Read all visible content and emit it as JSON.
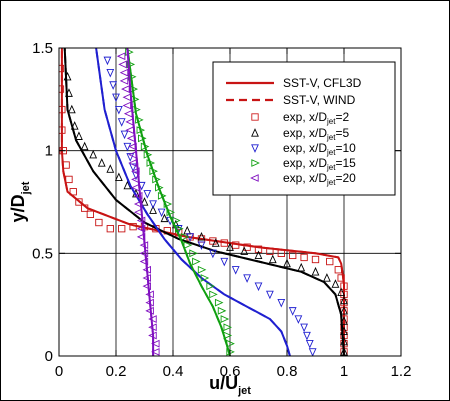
{
  "chart_data": {
    "type": "line",
    "xlabel": {
      "main": "u/U",
      "sub": "jet"
    },
    "ylabel": {
      "main": "y/D",
      "sub": "jet"
    },
    "xlim": [
      0,
      1.2
    ],
    "ylim": [
      0,
      1.5
    ],
    "x_ticks": [
      "0",
      "0.2",
      "0.4",
      "0.6",
      "0.8",
      "1",
      "1.2"
    ],
    "y_ticks": [
      "0",
      "0.5",
      "1",
      "1.5"
    ],
    "grid": true,
    "legend_position": "top-right",
    "legend": [
      {
        "text": "SST-V, CFL3D",
        "kind": "line",
        "color": "#c81414",
        "dash": false
      },
      {
        "text": "SST-V, WIND",
        "kind": "line",
        "color": "#c81414",
        "dash": true
      },
      {
        "text": "exp, x/D",
        "sub": "jet",
        "suffix": "=2",
        "kind": "marker",
        "marker": "square",
        "color": "#d02020"
      },
      {
        "text": "exp, x/D",
        "sub": "jet",
        "suffix": "=5",
        "kind": "marker",
        "marker": "triangle-up",
        "color": "#000000"
      },
      {
        "text": "exp, x/D",
        "sub": "jet",
        "suffix": "=10",
        "kind": "marker",
        "marker": "triangle-down",
        "color": "#2020d0"
      },
      {
        "text": "exp, x/D",
        "sub": "jet",
        "suffix": "=15",
        "kind": "marker",
        "marker": "triangle-right",
        "color": "#10a010"
      },
      {
        "text": "exp, x/D",
        "sub": "jet",
        "suffix": "=20",
        "kind": "marker",
        "marker": "triangle-left",
        "color": "#8010c0"
      }
    ],
    "series": [
      {
        "color": "#c81414",
        "marker": "square",
        "cfd": [
          [
            1.0,
            0
          ],
          [
            1.0,
            0.35
          ],
          [
            0.99,
            0.45
          ],
          [
            0.98,
            0.48
          ],
          [
            0.9,
            0.5
          ],
          [
            0.7,
            0.53
          ],
          [
            0.45,
            0.58
          ],
          [
            0.25,
            0.64
          ],
          [
            0.1,
            0.72
          ],
          [
            0.03,
            0.8
          ],
          [
            0.015,
            0.9
          ],
          [
            0.01,
            1.0
          ],
          [
            0.01,
            1.5
          ]
        ],
        "exp": [
          [
            1.0,
            0.02
          ],
          [
            1.0,
            0.06
          ],
          [
            1.0,
            0.1
          ],
          [
            1.0,
            0.14
          ],
          [
            1.0,
            0.18
          ],
          [
            1.0,
            0.22
          ],
          [
            1.0,
            0.26
          ],
          [
            1.0,
            0.3
          ],
          [
            1.0,
            0.34
          ],
          [
            0.99,
            0.38
          ],
          [
            0.98,
            0.42
          ],
          [
            0.95,
            0.46
          ],
          [
            0.9,
            0.47
          ],
          [
            0.86,
            0.48
          ],
          [
            0.82,
            0.49
          ],
          [
            0.78,
            0.5
          ],
          [
            0.74,
            0.51
          ],
          [
            0.7,
            0.52
          ],
          [
            0.66,
            0.53
          ],
          [
            0.62,
            0.54
          ],
          [
            0.58,
            0.55
          ],
          [
            0.54,
            0.56
          ],
          [
            0.5,
            0.57
          ],
          [
            0.46,
            0.58
          ],
          [
            0.42,
            0.6
          ],
          [
            0.38,
            0.61
          ],
          [
            0.34,
            0.62
          ],
          [
            0.3,
            0.63
          ],
          [
            0.26,
            0.63
          ],
          [
            0.22,
            0.62
          ],
          [
            0.18,
            0.62
          ],
          [
            0.14,
            0.65
          ],
          [
            0.11,
            0.69
          ],
          [
            0.09,
            0.72
          ],
          [
            0.07,
            0.75
          ],
          [
            0.05,
            0.8
          ],
          [
            0.035,
            0.86
          ],
          [
            0.025,
            0.93
          ],
          [
            0.015,
            1.0
          ],
          [
            0.01,
            1.1
          ],
          [
            0.01,
            1.2
          ],
          [
            0.005,
            1.3
          ],
          [
            0.005,
            1.4
          ]
        ]
      },
      {
        "color": "#000000",
        "marker": "triangle-up",
        "cfd": [
          [
            1.0,
            0
          ],
          [
            0.99,
            0.2
          ],
          [
            0.97,
            0.3
          ],
          [
            0.93,
            0.36
          ],
          [
            0.85,
            0.41
          ],
          [
            0.7,
            0.46
          ],
          [
            0.55,
            0.51
          ],
          [
            0.42,
            0.57
          ],
          [
            0.3,
            0.65
          ],
          [
            0.2,
            0.76
          ],
          [
            0.12,
            0.9
          ],
          [
            0.06,
            1.05
          ],
          [
            0.03,
            1.2
          ],
          [
            0.02,
            1.5
          ]
        ],
        "exp": [
          [
            1.0,
            0.02
          ],
          [
            1.0,
            0.07
          ],
          [
            1.0,
            0.12
          ],
          [
            1.0,
            0.17
          ],
          [
            1.0,
            0.22
          ],
          [
            1.0,
            0.27
          ],
          [
            0.99,
            0.31
          ],
          [
            0.97,
            0.35
          ],
          [
            0.94,
            0.38
          ],
          [
            0.9,
            0.41
          ],
          [
            0.85,
            0.43
          ],
          [
            0.8,
            0.45
          ],
          [
            0.75,
            0.47
          ],
          [
            0.7,
            0.49
          ],
          [
            0.65,
            0.51
          ],
          [
            0.6,
            0.53
          ],
          [
            0.55,
            0.55
          ],
          [
            0.5,
            0.58
          ],
          [
            0.45,
            0.61
          ],
          [
            0.41,
            0.64
          ],
          [
            0.37,
            0.67
          ],
          [
            0.33,
            0.71
          ],
          [
            0.3,
            0.75
          ],
          [
            0.27,
            0.79
          ],
          [
            0.24,
            0.83
          ],
          [
            0.21,
            0.87
          ],
          [
            0.18,
            0.91
          ],
          [
            0.15,
            0.94
          ],
          [
            0.12,
            0.98
          ],
          [
            0.09,
            1.02
          ],
          [
            0.07,
            1.07
          ],
          [
            0.055,
            1.12
          ],
          [
            0.045,
            1.2
          ],
          [
            0.035,
            1.28
          ],
          [
            0.03,
            1.36
          ]
        ]
      },
      {
        "color": "#2020d0",
        "marker": "triangle-down",
        "cfd": [
          [
            0.81,
            0
          ],
          [
            0.8,
            0.05
          ],
          [
            0.78,
            0.12
          ],
          [
            0.74,
            0.18
          ],
          [
            0.66,
            0.24
          ],
          [
            0.58,
            0.3
          ],
          [
            0.5,
            0.38
          ],
          [
            0.43,
            0.47
          ],
          [
            0.37,
            0.57
          ],
          [
            0.31,
            0.69
          ],
          [
            0.25,
            0.83
          ],
          [
            0.2,
            1.0
          ],
          [
            0.16,
            1.2
          ],
          [
            0.13,
            1.5
          ]
        ],
        "exp": [
          [
            0.89,
            0.02
          ],
          [
            0.88,
            0.06
          ],
          [
            0.87,
            0.1
          ],
          [
            0.86,
            0.14
          ],
          [
            0.84,
            0.18
          ],
          [
            0.82,
            0.22
          ],
          [
            0.78,
            0.26
          ],
          [
            0.74,
            0.3
          ],
          [
            0.7,
            0.34
          ],
          [
            0.66,
            0.38
          ],
          [
            0.62,
            0.42
          ],
          [
            0.58,
            0.46
          ],
          [
            0.54,
            0.5
          ],
          [
            0.5,
            0.54
          ],
          [
            0.46,
            0.58
          ],
          [
            0.42,
            0.62
          ],
          [
            0.39,
            0.66
          ],
          [
            0.36,
            0.7
          ],
          [
            0.33,
            0.74
          ],
          [
            0.31,
            0.79
          ],
          [
            0.29,
            0.83
          ],
          [
            0.27,
            0.88
          ],
          [
            0.26,
            0.92
          ],
          [
            0.25,
            0.97
          ],
          [
            0.24,
            1.02
          ],
          [
            0.23,
            1.08
          ],
          [
            0.22,
            1.14
          ],
          [
            0.21,
            1.2
          ],
          [
            0.2,
            1.26
          ],
          [
            0.19,
            1.32
          ],
          [
            0.18,
            1.38
          ],
          [
            0.17,
            1.44
          ]
        ]
      },
      {
        "color": "#10a010",
        "marker": "triangle-right",
        "cfd": [
          [
            0.6,
            0
          ],
          [
            0.59,
            0.05
          ],
          [
            0.57,
            0.14
          ],
          [
            0.54,
            0.24
          ],
          [
            0.5,
            0.34
          ],
          [
            0.46,
            0.45
          ],
          [
            0.43,
            0.56
          ],
          [
            0.39,
            0.68
          ],
          [
            0.35,
            0.82
          ],
          [
            0.31,
            0.98
          ],
          [
            0.27,
            1.18
          ],
          [
            0.24,
            1.5
          ]
        ],
        "exp": [
          [
            0.6,
            0.02
          ],
          [
            0.6,
            0.06
          ],
          [
            0.59,
            0.1
          ],
          [
            0.59,
            0.14
          ],
          [
            0.58,
            0.18
          ],
          [
            0.57,
            0.22
          ],
          [
            0.56,
            0.26
          ],
          [
            0.54,
            0.3
          ],
          [
            0.53,
            0.34
          ],
          [
            0.51,
            0.38
          ],
          [
            0.5,
            0.42
          ],
          [
            0.48,
            0.46
          ],
          [
            0.47,
            0.5
          ],
          [
            0.45,
            0.54
          ],
          [
            0.44,
            0.58
          ],
          [
            0.42,
            0.62
          ],
          [
            0.41,
            0.66
          ],
          [
            0.39,
            0.7
          ],
          [
            0.38,
            0.74
          ],
          [
            0.36,
            0.78
          ],
          [
            0.35,
            0.82
          ],
          [
            0.34,
            0.86
          ],
          [
            0.33,
            0.9
          ],
          [
            0.32,
            0.94
          ],
          [
            0.31,
            0.98
          ],
          [
            0.3,
            1.02
          ],
          [
            0.29,
            1.06
          ],
          [
            0.285,
            1.1
          ],
          [
            0.28,
            1.15
          ],
          [
            0.27,
            1.2
          ],
          [
            0.265,
            1.25
          ],
          [
            0.26,
            1.3
          ],
          [
            0.255,
            1.36
          ],
          [
            0.25,
            1.42
          ],
          [
            0.245,
            1.48
          ]
        ]
      },
      {
        "color": "#8010c0",
        "marker": "triangle-left",
        "cfd": [
          [
            0.33,
            0
          ],
          [
            0.33,
            0.1
          ],
          [
            0.32,
            0.25
          ],
          [
            0.31,
            0.4
          ],
          [
            0.3,
            0.55
          ],
          [
            0.29,
            0.7
          ],
          [
            0.28,
            0.85
          ],
          [
            0.27,
            1.0
          ],
          [
            0.26,
            1.15
          ],
          [
            0.25,
            1.3
          ],
          [
            0.24,
            1.5
          ]
        ],
        "exp": [
          [
            0.34,
            0.02
          ],
          [
            0.34,
            0.06
          ],
          [
            0.33,
            0.1
          ],
          [
            0.33,
            0.14
          ],
          [
            0.33,
            0.18
          ],
          [
            0.32,
            0.22
          ],
          [
            0.32,
            0.26
          ],
          [
            0.32,
            0.3
          ],
          [
            0.31,
            0.34
          ],
          [
            0.31,
            0.38
          ],
          [
            0.31,
            0.42
          ],
          [
            0.3,
            0.46
          ],
          [
            0.3,
            0.5
          ],
          [
            0.3,
            0.54
          ],
          [
            0.29,
            0.58
          ],
          [
            0.29,
            0.62
          ],
          [
            0.29,
            0.66
          ],
          [
            0.28,
            0.7
          ],
          [
            0.28,
            0.74
          ],
          [
            0.28,
            0.78
          ],
          [
            0.27,
            0.82
          ],
          [
            0.27,
            0.86
          ],
          [
            0.27,
            0.9
          ],
          [
            0.26,
            0.94
          ],
          [
            0.26,
            0.98
          ],
          [
            0.26,
            1.02
          ],
          [
            0.255,
            1.06
          ],
          [
            0.25,
            1.1
          ],
          [
            0.25,
            1.14
          ],
          [
            0.245,
            1.18
          ],
          [
            0.24,
            1.22
          ],
          [
            0.24,
            1.26
          ],
          [
            0.235,
            1.3
          ],
          [
            0.23,
            1.34
          ],
          [
            0.23,
            1.38
          ],
          [
            0.225,
            1.42
          ],
          [
            0.22,
            1.46
          ]
        ]
      }
    ]
  }
}
